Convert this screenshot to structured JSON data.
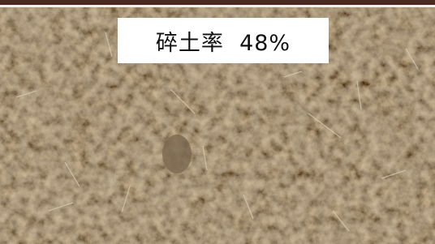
{
  "label": "碎土率  48%"
}
